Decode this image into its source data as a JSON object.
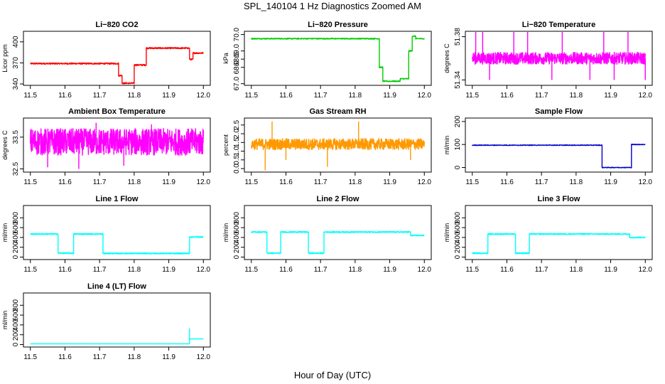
{
  "figure": {
    "title": "SPL_140104  1 Hz Diagnostics Zoomed AM",
    "xlabel": "Hour of Day (UTC)"
  },
  "chart_data": [
    {
      "type": "line",
      "title": "Li−820 CO2",
      "ylabel": "Licor ppm",
      "color": "#ff0000",
      "xlim": [
        11.48,
        12.02
      ],
      "ylim": [
        338,
        415
      ],
      "xticks": [
        "11.5",
        "11.6",
        "11.7",
        "11.8",
        "11.9",
        "12.0"
      ],
      "yticks": [
        {
          "v": 340,
          "l": "340"
        },
        {
          "v": 370,
          "l": "370"
        },
        {
          "v": 400,
          "l": "400"
        }
      ],
      "noise": 1.0,
      "spikes": [],
      "segments": [
        [
          11.5,
          11.755,
          369
        ],
        [
          11.755,
          11.765,
          352
        ],
        [
          11.765,
          11.8,
          341
        ],
        [
          11.8,
          11.835,
          367
        ],
        [
          11.835,
          11.96,
          391
        ],
        [
          11.96,
          11.97,
          375
        ],
        [
          11.97,
          12.0,
          384
        ]
      ]
    },
    {
      "type": "line",
      "title": "Li−820 Pressure",
      "ylabel": "kPa",
      "color": "#00cc00",
      "xlim": [
        11.48,
        12.02
      ],
      "ylim": [
        66.9,
        70.2
      ],
      "xticks": [
        "11.5",
        "11.6",
        "11.7",
        "11.8",
        "11.9",
        "12.0"
      ],
      "yticks": [
        {
          "v": 67.0,
          "l": "67.0"
        },
        {
          "v": 68.0,
          "l": "68.0"
        },
        {
          "v": 68.5,
          "l": "68.5"
        },
        {
          "v": 69.0,
          "l": "69.0"
        },
        {
          "v": 70.0,
          "l": "70.0"
        }
      ],
      "noise": 0.03,
      "spikes": [],
      "segments": [
        [
          11.5,
          11.87,
          69.75
        ],
        [
          11.87,
          11.88,
          68.0
        ],
        [
          11.88,
          11.93,
          67.15
        ],
        [
          11.93,
          11.955,
          67.3
        ],
        [
          11.955,
          11.965,
          69.0
        ],
        [
          11.965,
          11.975,
          69.9
        ],
        [
          11.975,
          12.0,
          69.75
        ]
      ]
    },
    {
      "type": "line",
      "title": "Li−820 Temperature",
      "ylabel": "degrees C",
      "color": "#ff00ff",
      "xlim": [
        11.48,
        12.02
      ],
      "ylim": [
        51.335,
        51.385
      ],
      "xticks": [
        "11.5",
        "11.6",
        "11.7",
        "11.8",
        "11.9",
        "12.0"
      ],
      "yticks": [
        {
          "v": 51.34,
          "l": "51.34"
        },
        {
          "v": 51.38,
          "l": "51.38"
        }
      ],
      "noise": 0.0055,
      "spikes": [
        [
          11.51,
          51.39
        ],
        [
          11.53,
          51.39
        ],
        [
          11.55,
          51.34
        ],
        [
          11.62,
          51.39
        ],
        [
          11.66,
          51.39
        ],
        [
          11.73,
          51.34
        ],
        [
          11.76,
          51.39
        ],
        [
          11.84,
          51.34
        ],
        [
          11.88,
          51.39
        ],
        [
          11.91,
          51.34
        ],
        [
          11.95,
          51.39
        ],
        [
          12.0,
          51.34
        ]
      ],
      "segments": [
        [
          11.5,
          12.0,
          51.36
        ]
      ]
    },
    {
      "type": "line",
      "title": "Ambient Box Temperature",
      "ylabel": "degrees C",
      "color": "#ff00ff",
      "xlim": [
        11.48,
        12.02
      ],
      "ylim": [
        32.4,
        34.1
      ],
      "xticks": [
        "11.5",
        "11.6",
        "11.7",
        "11.8",
        "11.9",
        "12.0"
      ],
      "yticks": [
        {
          "v": 32.5,
          "l": "32.5"
        },
        {
          "v": 33.5,
          "l": "33.5"
        }
      ],
      "noise": 0.42,
      "spikes": [
        [
          11.55,
          32.55
        ],
        [
          11.64,
          32.5
        ],
        [
          11.69,
          33.95
        ],
        [
          11.77,
          32.6
        ],
        [
          11.85,
          33.9
        ]
      ],
      "segments": [
        [
          11.5,
          12.0,
          33.35
        ]
      ]
    },
    {
      "type": "line",
      "title": "Gas Stream RH",
      "ylabel": "percent",
      "color": "#ff9900",
      "xlim": [
        11.48,
        12.02
      ],
      "ylim": [
        -0.2,
        2.9
      ],
      "xticks": [
        "11.5",
        "11.6",
        "11.7",
        "11.8",
        "11.9",
        "12.0"
      ],
      "yticks": [
        {
          "v": 0.0,
          "l": "0.0"
        },
        {
          "v": 0.5,
          "l": "0.5"
        },
        {
          "v": 1.0,
          "l": "1.0"
        },
        {
          "v": 1.5,
          "l": "1.5"
        },
        {
          "v": 2.0,
          "l": "2.0"
        },
        {
          "v": 2.5,
          "l": "2.5"
        }
      ],
      "noise": 0.32,
      "spikes": [
        [
          11.54,
          -0.1
        ],
        [
          11.56,
          2.7
        ],
        [
          11.6,
          0.5
        ],
        [
          11.72,
          0.1
        ],
        [
          11.81,
          2.7
        ],
        [
          11.96,
          0.5
        ]
      ],
      "segments": [
        [
          11.5,
          12.0,
          1.4
        ]
      ]
    },
    {
      "type": "line",
      "title": "Sample Flow",
      "ylabel": "ml/min",
      "color": "#0000cc",
      "xlim": [
        11.48,
        12.02
      ],
      "ylim": [
        -20,
        215
      ],
      "xticks": [
        "11.5",
        "11.6",
        "11.7",
        "11.8",
        "11.9",
        "12.0"
      ],
      "yticks": [
        {
          "v": 0,
          "l": "0"
        },
        {
          "v": 100,
          "l": "100"
        },
        {
          "v": 200,
          "l": "200"
        }
      ],
      "noise": 1.5,
      "spikes": [],
      "segments": [
        [
          11.5,
          11.875,
          97
        ],
        [
          11.875,
          11.96,
          0
        ],
        [
          11.96,
          12.0,
          100
        ]
      ]
    },
    {
      "type": "line",
      "title": "Line 1 Flow",
      "ylabel": "ml/min",
      "color": "#00ffff",
      "xlim": [
        11.48,
        12.02
      ],
      "ylim": [
        -50,
        1050
      ],
      "xticks": [
        "11.5",
        "11.6",
        "11.7",
        "11.8",
        "11.9",
        "12.0"
      ],
      "yticks": [
        {
          "v": 0,
          "l": "0"
        },
        {
          "v": 200,
          "l": "200"
        },
        {
          "v": 400,
          "l": "400"
        },
        {
          "v": 600,
          "l": "600"
        },
        {
          "v": 800,
          "l": "800"
        }
      ],
      "noise": 12,
      "spikes": [],
      "segments": [
        [
          11.5,
          11.58,
          470
        ],
        [
          11.58,
          11.625,
          80
        ],
        [
          11.625,
          11.71,
          470
        ],
        [
          11.71,
          11.96,
          75
        ],
        [
          11.96,
          12.0,
          410
        ]
      ]
    },
    {
      "type": "line",
      "title": "Line 2 Flow",
      "ylabel": "ml/min",
      "color": "#00ffff",
      "xlim": [
        11.48,
        12.02
      ],
      "ylim": [
        -50,
        1050
      ],
      "xticks": [
        "11.5",
        "11.6",
        "11.7",
        "11.8",
        "11.9",
        "12.0"
      ],
      "yticks": [
        {
          "v": 0,
          "l": "0"
        },
        {
          "v": 200,
          "l": "200"
        },
        {
          "v": 400,
          "l": "400"
        },
        {
          "v": 600,
          "l": "600"
        },
        {
          "v": 800,
          "l": "800"
        }
      ],
      "noise": 12,
      "spikes": [],
      "segments": [
        [
          11.5,
          11.545,
          510
        ],
        [
          11.545,
          11.585,
          80
        ],
        [
          11.585,
          11.665,
          510
        ],
        [
          11.665,
          11.71,
          80
        ],
        [
          11.71,
          11.96,
          510
        ],
        [
          11.96,
          12.0,
          440
        ]
      ]
    },
    {
      "type": "line",
      "title": "Line 3 Flow",
      "ylabel": "ml/min",
      "color": "#00ffff",
      "xlim": [
        11.48,
        12.02
      ],
      "ylim": [
        -50,
        1050
      ],
      "xticks": [
        "11.5",
        "11.6",
        "11.7",
        "11.8",
        "11.9",
        "12.0"
      ],
      "yticks": [
        {
          "v": 0,
          "l": "0"
        },
        {
          "v": 200,
          "l": "200"
        },
        {
          "v": 400,
          "l": "400"
        },
        {
          "v": 600,
          "l": "600"
        },
        {
          "v": 800,
          "l": "800"
        }
      ],
      "noise": 12,
      "spikes": [],
      "segments": [
        [
          11.5,
          11.545,
          80
        ],
        [
          11.545,
          11.625,
          470
        ],
        [
          11.625,
          11.665,
          80
        ],
        [
          11.665,
          11.955,
          470
        ],
        [
          11.955,
          12.0,
          400
        ]
      ]
    },
    {
      "type": "line",
      "title": "Line 4 (LT) Flow",
      "ylabel": "ml/min",
      "color": "#00ffff",
      "xlim": [
        11.48,
        12.02
      ],
      "ylim": [
        -50,
        1050
      ],
      "xticks": [
        "11.5",
        "11.6",
        "11.7",
        "11.8",
        "11.9",
        "12.0"
      ],
      "yticks": [
        {
          "v": 0,
          "l": "0"
        },
        {
          "v": 200,
          "l": "200"
        },
        {
          "v": 400,
          "l": "400"
        },
        {
          "v": 600,
          "l": "600"
        },
        {
          "v": 800,
          "l": "800"
        }
      ],
      "noise": 2,
      "spikes": [
        [
          11.96,
          330
        ]
      ],
      "segments": [
        [
          11.5,
          11.96,
          15
        ],
        [
          11.96,
          12.0,
          115
        ]
      ]
    }
  ]
}
